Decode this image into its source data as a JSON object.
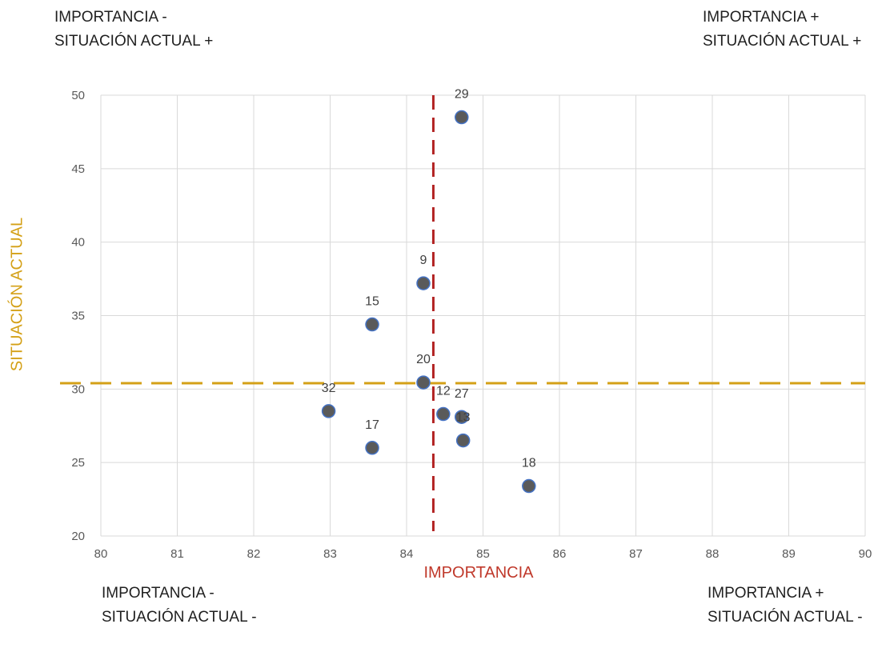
{
  "chart_data": {
    "type": "scatter",
    "xlabel": "IMPORTANCIA",
    "ylabel": "SITUACIÓN ACTUAL",
    "xlim": [
      80,
      90
    ],
    "ylim": [
      20,
      50
    ],
    "x_ticks": [
      "80",
      "81",
      "82",
      "83",
      "84",
      "85",
      "86",
      "87",
      "88",
      "89",
      "90"
    ],
    "y_ticks": [
      "20",
      "25",
      "30",
      "35",
      "40",
      "45",
      "50"
    ],
    "grid": true,
    "points": [
      {
        "label": "29",
        "x": 84.72,
        "y": 48.5
      },
      {
        "label": "9",
        "x": 84.22,
        "y": 37.2
      },
      {
        "label": "15",
        "x": 83.55,
        "y": 34.4
      },
      {
        "label": "20",
        "x": 84.22,
        "y": 30.45
      },
      {
        "label": "32",
        "x": 82.98,
        "y": 28.5
      },
      {
        "label": "12",
        "x": 84.48,
        "y": 28.3
      },
      {
        "label": "27",
        "x": 84.72,
        "y": 28.1
      },
      {
        "label": "13",
        "x": 84.74,
        "y": 26.5
      },
      {
        "label": "17",
        "x": 83.55,
        "y": 26.0
      },
      {
        "label": "18",
        "x": 85.6,
        "y": 23.4
      }
    ],
    "reference_lines": {
      "vertical_x": 84.35,
      "horizontal_y": 30.4
    },
    "colors": {
      "point_fill": "#5a5a5a",
      "point_stroke": "#4472c4",
      "vertical_line": "#b22222",
      "horizontal_line": "#d4a017",
      "grid": "#d9d9d9",
      "x_title": "#c0392b",
      "y_title": "#d4a017"
    }
  },
  "quadrants": {
    "top_left": "IMPORTANCIA -\nSITUACIÓN ACTUAL +",
    "top_right": "IMPORTANCIA +\nSITUACIÓN ACTUAL +",
    "bottom_left": "IMPORTANCIA -\nSITUACIÓN ACTUAL -",
    "bottom_right": "IMPORTANCIA +\nSITUACIÓN ACTUAL -"
  }
}
